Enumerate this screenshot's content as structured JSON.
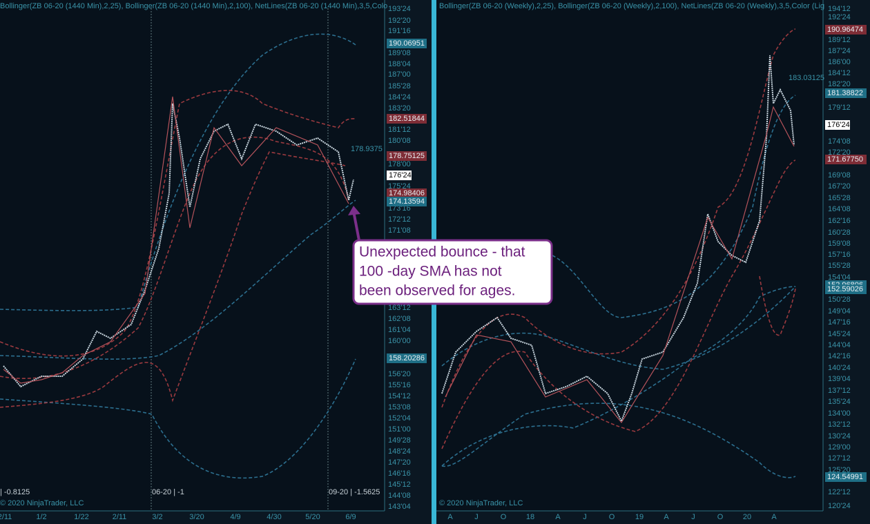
{
  "left": {
    "header": "Bollinger(ZB 06-20 (1440 Min),2,25), Bollinger(ZB 06-20 (1440 Min),2,100), NetLines(ZB 06-20 (1440 Min),3,5,Colo",
    "axis_labels": [
      "193'24",
      "192'20",
      "191'16",
      "189'08",
      "188'04",
      "187'00",
      "185'28",
      "184'24",
      "183'20",
      "181'12",
      "180'08",
      "178'00",
      "175'24",
      "173'16",
      "172'12",
      "171'08",
      "163'12",
      "162'08",
      "161'04",
      "160'00",
      "156'20",
      "155'16",
      "154'12",
      "153'08",
      "152'04",
      "151'00",
      "149'28",
      "148'24",
      "147'20",
      "146'16",
      "145'12",
      "144'08",
      "143'04"
    ],
    "tags": [
      "190.06951",
      "182.51844",
      "178.75125",
      "176'24",
      "174.98406",
      "174.13594",
      "158.20286"
    ],
    "last_label": "178.9375",
    "footer": [
      "| -0.8125",
      "06-20 | -1",
      "09-20 | -1.5625"
    ],
    "copyright": "© 2020 NinjaTrader, LLC",
    "x_labels": [
      "2/11",
      "1/2",
      "1/22",
      "2/11",
      "3/2",
      "3/20",
      "4/9",
      "4/30",
      "5/20",
      "6/9"
    ]
  },
  "right": {
    "header": "Bollinger(ZB 06-20 (Weekly),2,25), Bollinger(ZB 06-20 (Weekly),2,100), NetLines(ZB 06-20 (Weekly),3,5,Color (Lig",
    "axis_labels": [
      "194'12",
      "192'24",
      "189'12",
      "187'24",
      "186'00",
      "184'12",
      "182'20",
      "179'12",
      "174'08",
      "172'20",
      "169'08",
      "167'20",
      "165'28",
      "164'08",
      "162'16",
      "160'28",
      "159'08",
      "157'16",
      "155'28",
      "154'04",
      "150'28",
      "149'04",
      "147'16",
      "145'24",
      "144'04",
      "142'16",
      "140'24",
      "139'04",
      "137'12",
      "135'24",
      "134'00",
      "132'12",
      "130'24",
      "129'00",
      "127'12",
      "125'20",
      "122'12",
      "120'24"
    ],
    "tags": [
      "190.96474",
      "181.38822",
      "176'24",
      "171.67750",
      "152.96806",
      "152.59026",
      "124.54991"
    ],
    "last_label": "183.03125",
    "copyright": "© 2020 NinjaTrader, LLC",
    "x_labels": [
      "A",
      "J",
      "O",
      "18",
      "A",
      "J",
      "O",
      "19",
      "A",
      "J",
      "O",
      "20",
      "A"
    ]
  },
  "annotation": {
    "lines": [
      "Unexpected bounce - that",
      "100 -day SMA has not",
      "been observed for ages."
    ]
  }
}
